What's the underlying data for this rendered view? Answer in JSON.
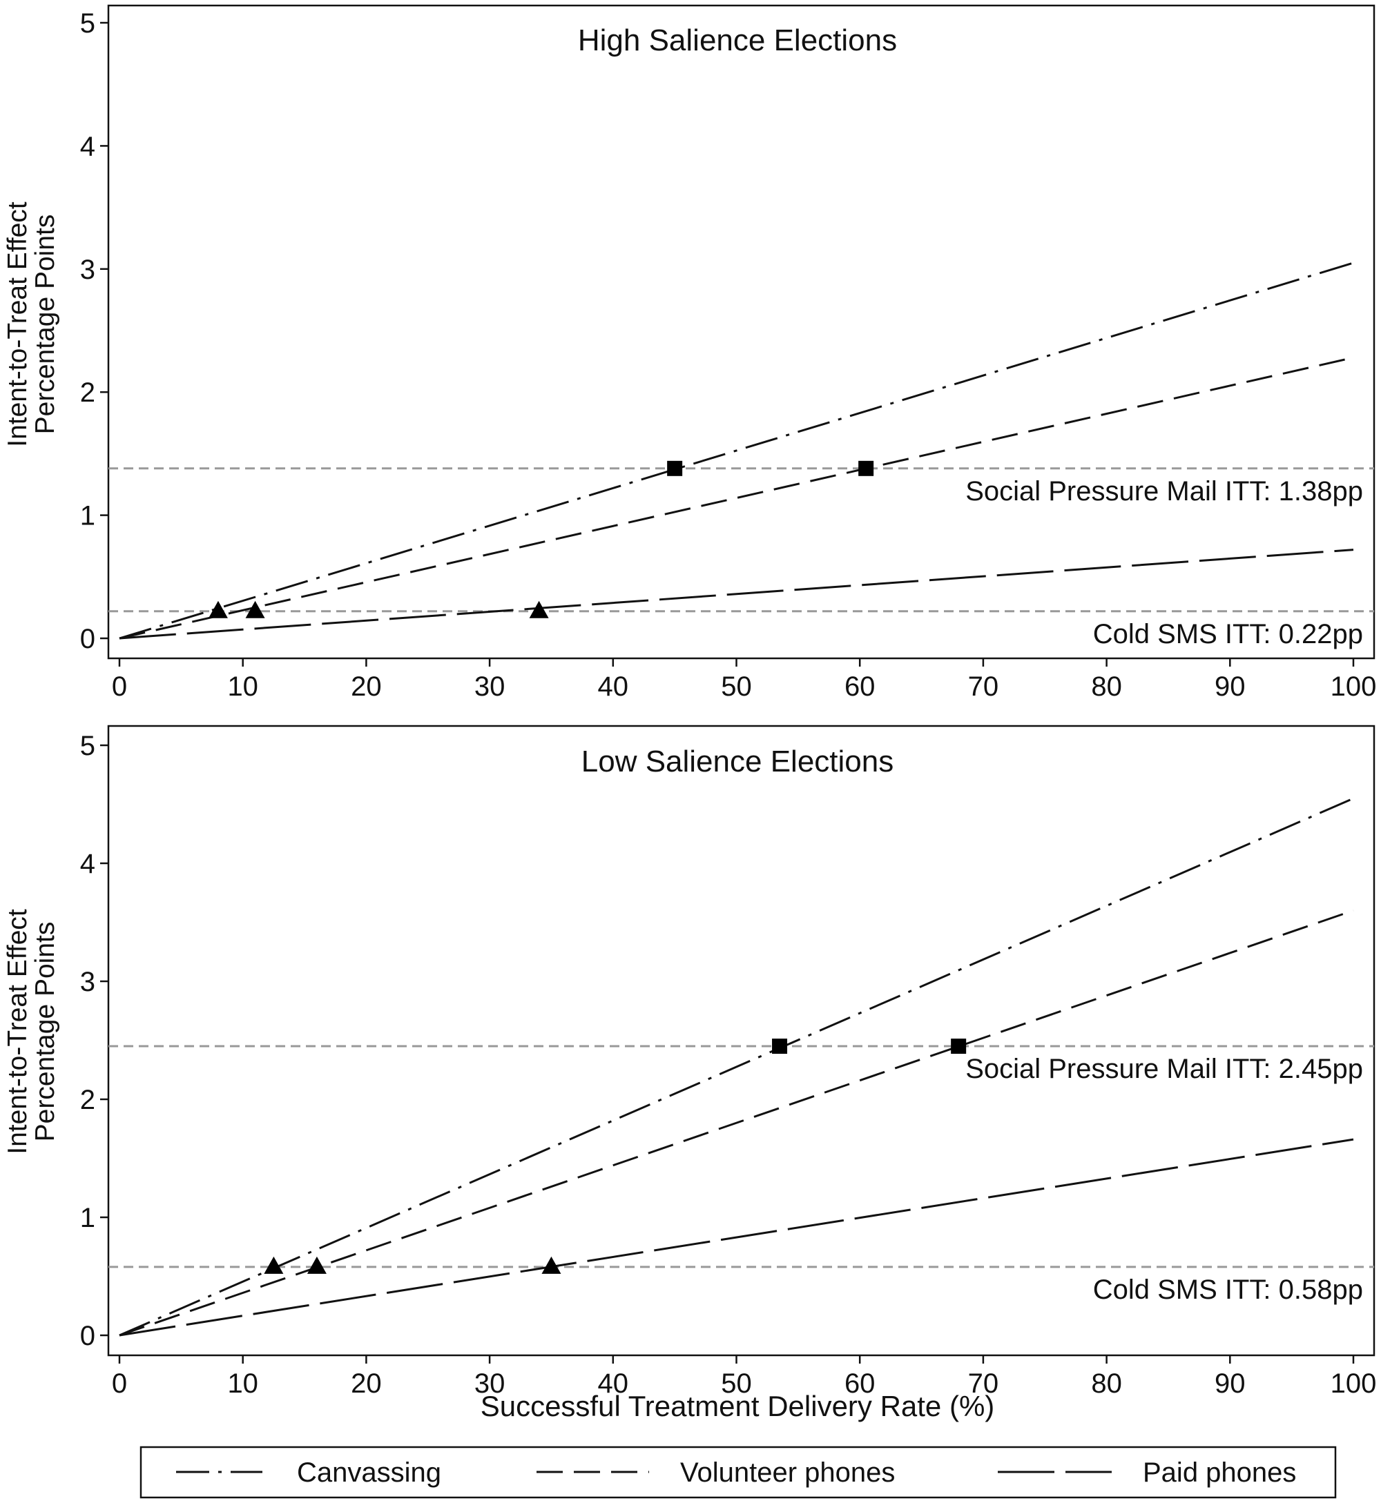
{
  "figure": {
    "shared_xlabel": "Successful Treatment Delivery Rate (%)",
    "shared_ylabel_line1": "Intent-to-Treat Effect",
    "shared_ylabel_line2": "Percentage Points"
  },
  "legend": {
    "position": "bottom",
    "items": [
      {
        "name": "Canvassing",
        "style": "dashdot"
      },
      {
        "name": "Volunteer phones",
        "style": "dashed"
      },
      {
        "name": "Paid phones",
        "style": "longdash"
      }
    ]
  },
  "chart_data": [
    {
      "type": "line",
      "title": "High Salience Elections",
      "xlabel": "",
      "ylabel": "Intent-to-Treat Effect Percentage Points",
      "xlim": [
        0,
        100
      ],
      "ylim": [
        0,
        5
      ],
      "xticks": [
        0,
        10,
        20,
        30,
        40,
        50,
        60,
        70,
        80,
        90,
        100
      ],
      "yticks": [
        0,
        1,
        2,
        3,
        4,
        5
      ],
      "grid": false,
      "series": [
        {
          "name": "Canvassing",
          "style": "dashdot",
          "x": [
            0,
            100
          ],
          "y": [
            0,
            3.05
          ]
        },
        {
          "name": "Volunteer phones",
          "style": "dashed",
          "x": [
            0,
            100
          ],
          "y": [
            0,
            2.28
          ]
        },
        {
          "name": "Paid phones",
          "style": "longdash",
          "x": [
            0,
            100
          ],
          "y": [
            0,
            0.72
          ]
        }
      ],
      "reference_lines": [
        {
          "y": 1.38,
          "label": "Social Pressure Mail ITT: 1.38pp",
          "marker": "square"
        },
        {
          "y": 0.22,
          "label": "Cold SMS ITT: 0.22pp",
          "marker": "triangle"
        }
      ],
      "markers": [
        {
          "shape": "triangle",
          "x": 8,
          "y": 0.22
        },
        {
          "shape": "triangle",
          "x": 11,
          "y": 0.22
        },
        {
          "shape": "triangle",
          "x": 34,
          "y": 0.22
        },
        {
          "shape": "square",
          "x": 45,
          "y": 1.38
        },
        {
          "shape": "square",
          "x": 60.5,
          "y": 1.38
        }
      ]
    },
    {
      "type": "line",
      "title": "Low Salience Elections",
      "xlabel": "Successful Treatment Delivery Rate (%)",
      "ylabel": "Intent-to-Treat Effect Percentage Points",
      "xlim": [
        0,
        100
      ],
      "ylim": [
        0,
        5
      ],
      "xticks": [
        0,
        10,
        20,
        30,
        40,
        50,
        60,
        70,
        80,
        90,
        100
      ],
      "yticks": [
        0,
        1,
        2,
        3,
        4,
        5
      ],
      "grid": false,
      "series": [
        {
          "name": "Canvassing",
          "style": "dashdot",
          "x": [
            0,
            100
          ],
          "y": [
            0,
            4.55
          ]
        },
        {
          "name": "Volunteer phones",
          "style": "dashed",
          "x": [
            0,
            100
          ],
          "y": [
            0,
            3.6
          ]
        },
        {
          "name": "Paid phones",
          "style": "longdash",
          "x": [
            0,
            100
          ],
          "y": [
            0,
            1.66
          ]
        }
      ],
      "reference_lines": [
        {
          "y": 2.45,
          "label": "Social Pressure Mail ITT: 2.45pp",
          "marker": "square"
        },
        {
          "y": 0.58,
          "label": "Cold SMS ITT: 0.58pp",
          "marker": "triangle"
        }
      ],
      "markers": [
        {
          "shape": "triangle",
          "x": 12.5,
          "y": 0.58
        },
        {
          "shape": "triangle",
          "x": 16,
          "y": 0.58
        },
        {
          "shape": "triangle",
          "x": 35,
          "y": 0.58
        },
        {
          "shape": "square",
          "x": 53.5,
          "y": 2.45
        },
        {
          "shape": "square",
          "x": 68,
          "y": 2.45
        }
      ]
    }
  ]
}
